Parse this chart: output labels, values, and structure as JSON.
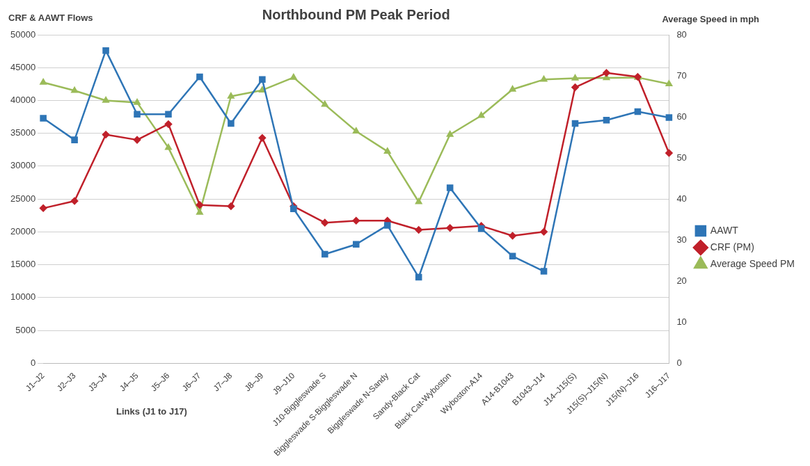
{
  "chart_data": {
    "type": "line",
    "title": "Northbound PM Peak Period",
    "ylabel": "CRF & AAWT Flows",
    "y2label": "Average Speed in mph",
    "xlabel": "Links (J1 to J17)",
    "categories": [
      "J1–J2",
      "J2–J3",
      "J3–J4",
      "J4–J5",
      "J5–J6",
      "J6–J7",
      "J7–J8",
      "J8–J9",
      "J9–J10",
      "J10-Biggleswade S",
      "Biggleswade S-Biggleswade N",
      "Biggleswade N-Sandy",
      "Sandy-Black Cat",
      "Black Cat-Wyboston",
      "Wyboston-A14",
      "A14-B1043",
      "B1043–J14",
      "J14–J15(S)",
      "J15(S)–J15(N)",
      "J15(N)–J16",
      "J16–J17"
    ],
    "series": [
      {
        "name": "AAWT",
        "color": "#2e75b6",
        "marker": "square",
        "values": [
          37300,
          34000,
          47600,
          37900,
          37900,
          43600,
          36500,
          43200,
          23500,
          16600,
          18100,
          21000,
          13100,
          26700,
          20500,
          16300,
          14000,
          36500,
          37000,
          38300,
          37400
        ]
      },
      {
        "name": "CRF (PM)",
        "color": "#c0202a",
        "marker": "diamond",
        "values": [
          23600,
          24700,
          34800,
          34000,
          36400,
          24100,
          23900,
          34300,
          23900,
          21400,
          21700,
          21700,
          20300,
          20600,
          20900,
          19400,
          20000,
          42000,
          44200,
          43600,
          32000
        ]
      },
      {
        "name": "Average Speed PM",
        "color": "#9bbb59",
        "marker": "triangle",
        "axis": "y2",
        "values": [
          68.4,
          66.4,
          64,
          63.5,
          52.5,
          36.7,
          65,
          66.5,
          69.6,
          63,
          56.5,
          51.6,
          39.3,
          55.7,
          60.3,
          66.7,
          69.1,
          69.4,
          69.5,
          69.6,
          68
        ]
      }
    ],
    "ylim": [
      0,
      50000
    ],
    "yticks": [
      0,
      5000,
      10000,
      15000,
      20000,
      25000,
      30000,
      35000,
      40000,
      45000,
      50000
    ],
    "y2lim": [
      0,
      80
    ],
    "y2ticks": [
      0,
      10,
      20,
      30,
      40,
      50,
      60,
      70,
      80
    ],
    "grid": "y",
    "legend": "right",
    "line_style": "solid"
  }
}
